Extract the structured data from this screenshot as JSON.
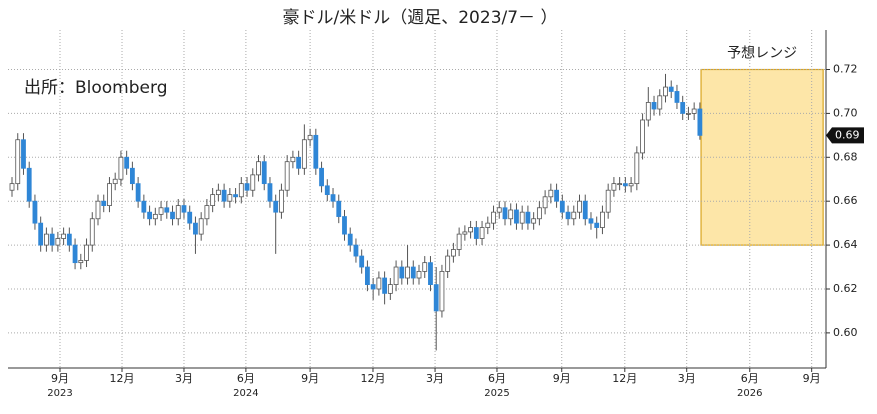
{
  "chart_data": {
    "type": "candlestick",
    "title": "豪ドル/米ドル（週足、2023/7－ ）",
    "source": "出所：Bloomberg",
    "x": [
      0,
      1,
      2,
      3,
      4,
      5,
      6,
      7,
      8,
      9,
      10,
      11,
      12,
      13,
      14,
      15,
      16,
      17,
      18,
      19,
      20,
      21,
      22,
      23,
      24,
      25,
      26,
      27,
      28,
      29,
      30,
      31,
      32,
      33,
      34,
      35,
      36,
      37,
      38,
      39,
      40,
      41,
      42,
      43,
      44,
      45,
      46,
      47,
      48,
      49,
      50,
      51,
      52,
      53,
      54,
      55,
      56,
      57,
      58,
      59,
      60,
      61,
      62,
      63,
      64,
      65,
      66,
      67,
      68,
      69,
      70,
      71,
      72,
      73,
      74,
      75,
      76,
      77,
      78,
      79,
      80,
      81,
      82,
      83,
      84,
      85,
      86,
      87,
      88,
      89,
      90,
      91,
      92,
      93,
      94,
      95,
      96,
      97,
      98,
      99,
      100,
      101,
      102,
      103,
      104,
      105,
      106,
      107,
      108,
      109,
      110,
      111,
      112,
      113,
      114,
      115,
      116,
      117,
      118,
      119,
      120
    ],
    "open": [
      0.665,
      0.668,
      0.688,
      0.675,
      0.66,
      0.65,
      0.64,
      0.645,
      0.64,
      0.643,
      0.645,
      0.64,
      0.632,
      0.633,
      0.64,
      0.652,
      0.66,
      0.658,
      0.668,
      0.67,
      0.68,
      0.675,
      0.668,
      0.66,
      0.655,
      0.652,
      0.654,
      0.657,
      0.655,
      0.652,
      0.658,
      0.655,
      0.65,
      0.645,
      0.652,
      0.658,
      0.663,
      0.665,
      0.66,
      0.663,
      0.662,
      0.668,
      0.665,
      0.672,
      0.678,
      0.668,
      0.66,
      0.655,
      0.665,
      0.678,
      0.68,
      0.675,
      0.688,
      0.69,
      0.675,
      0.667,
      0.663,
      0.66,
      0.653,
      0.645,
      0.64,
      0.635,
      0.63,
      0.622,
      0.62,
      0.625,
      0.618,
      0.622,
      0.63,
      0.625,
      0.63,
      0.625,
      0.628,
      0.632,
      0.622,
      0.61,
      0.628,
      0.635,
      0.638,
      0.645,
      0.646,
      0.648,
      0.643,
      0.648,
      0.65,
      0.655,
      0.657,
      0.652,
      0.656,
      0.65,
      0.655,
      0.65,
      0.652,
      0.657,
      0.662,
      0.665,
      0.66,
      0.655,
      0.652,
      0.655,
      0.66,
      0.652,
      0.65,
      0.648,
      0.655,
      0.665,
      0.668,
      0.668,
      0.667,
      0.668,
      0.682,
      0.697,
      0.705,
      0.702,
      0.708,
      0.712,
      0.71,
      0.705,
      0.7,
      0.7,
      0.702
    ],
    "high": [
      0.671,
      0.691,
      0.691,
      0.678,
      0.663,
      0.653,
      0.648,
      0.648,
      0.646,
      0.648,
      0.648,
      0.643,
      0.636,
      0.643,
      0.655,
      0.663,
      0.663,
      0.671,
      0.673,
      0.683,
      0.683,
      0.678,
      0.671,
      0.663,
      0.658,
      0.657,
      0.66,
      0.66,
      0.658,
      0.661,
      0.661,
      0.658,
      0.653,
      0.655,
      0.661,
      0.666,
      0.668,
      0.668,
      0.666,
      0.666,
      0.671,
      0.671,
      0.675,
      0.681,
      0.681,
      0.671,
      0.663,
      0.668,
      0.681,
      0.683,
      0.683,
      0.695,
      0.693,
      0.693,
      0.678,
      0.67,
      0.666,
      0.663,
      0.656,
      0.648,
      0.643,
      0.638,
      0.633,
      0.625,
      0.628,
      0.628,
      0.625,
      0.633,
      0.633,
      0.64,
      0.633,
      0.631,
      0.635,
      0.635,
      0.63,
      0.631,
      0.638,
      0.641,
      0.648,
      0.649,
      0.651,
      0.651,
      0.651,
      0.653,
      0.658,
      0.66,
      0.66,
      0.659,
      0.659,
      0.658,
      0.658,
      0.655,
      0.66,
      0.665,
      0.668,
      0.668,
      0.663,
      0.658,
      0.658,
      0.663,
      0.663,
      0.655,
      0.653,
      0.658,
      0.668,
      0.671,
      0.671,
      0.671,
      0.671,
      0.685,
      0.7,
      0.712,
      0.708,
      0.711,
      0.718,
      0.715,
      0.713,
      0.708,
      0.703,
      0.705,
      0.705
    ],
    "low": [
      0.662,
      0.665,
      0.672,
      0.657,
      0.647,
      0.637,
      0.637,
      0.637,
      0.637,
      0.64,
      0.637,
      0.629,
      0.629,
      0.63,
      0.637,
      0.649,
      0.655,
      0.655,
      0.665,
      0.667,
      0.672,
      0.665,
      0.657,
      0.652,
      0.649,
      0.649,
      0.651,
      0.652,
      0.649,
      0.649,
      0.652,
      0.647,
      0.636,
      0.642,
      0.649,
      0.655,
      0.66,
      0.657,
      0.657,
      0.659,
      0.659,
      0.662,
      0.662,
      0.669,
      0.665,
      0.657,
      0.636,
      0.652,
      0.662,
      0.675,
      0.672,
      0.672,
      0.685,
      0.672,
      0.664,
      0.66,
      0.657,
      0.65,
      0.642,
      0.637,
      0.632,
      0.627,
      0.619,
      0.615,
      0.617,
      0.613,
      0.615,
      0.619,
      0.622,
      0.622,
      0.622,
      0.622,
      0.625,
      0.619,
      0.592,
      0.607,
      0.625,
      0.632,
      0.635,
      0.642,
      0.643,
      0.64,
      0.64,
      0.645,
      0.647,
      0.652,
      0.649,
      0.649,
      0.647,
      0.647,
      0.647,
      0.647,
      0.649,
      0.654,
      0.659,
      0.657,
      0.652,
      0.649,
      0.649,
      0.652,
      0.649,
      0.647,
      0.643,
      0.645,
      0.652,
      0.662,
      0.665,
      0.664,
      0.664,
      0.665,
      0.679,
      0.694,
      0.699,
      0.699,
      0.705,
      0.707,
      0.702,
      0.697,
      0.697,
      0.697,
      0.688
    ],
    "close": [
      0.668,
      0.688,
      0.675,
      0.66,
      0.65,
      0.64,
      0.645,
      0.64,
      0.643,
      0.645,
      0.64,
      0.632,
      0.633,
      0.64,
      0.652,
      0.66,
      0.658,
      0.668,
      0.67,
      0.68,
      0.675,
      0.668,
      0.66,
      0.655,
      0.652,
      0.654,
      0.657,
      0.655,
      0.652,
      0.658,
      0.655,
      0.65,
      0.645,
      0.652,
      0.658,
      0.663,
      0.665,
      0.66,
      0.663,
      0.662,
      0.668,
      0.665,
      0.672,
      0.678,
      0.668,
      0.66,
      0.655,
      0.665,
      0.678,
      0.68,
      0.675,
      0.688,
      0.69,
      0.675,
      0.667,
      0.663,
      0.66,
      0.653,
      0.645,
      0.64,
      0.635,
      0.63,
      0.622,
      0.62,
      0.625,
      0.618,
      0.622,
      0.63,
      0.625,
      0.63,
      0.625,
      0.628,
      0.632,
      0.622,
      0.61,
      0.628,
      0.635,
      0.638,
      0.645,
      0.646,
      0.648,
      0.643,
      0.648,
      0.65,
      0.655,
      0.657,
      0.652,
      0.656,
      0.65,
      0.655,
      0.65,
      0.652,
      0.657,
      0.662,
      0.665,
      0.66,
      0.655,
      0.652,
      0.655,
      0.66,
      0.652,
      0.65,
      0.648,
      0.655,
      0.665,
      0.668,
      0.668,
      0.667,
      0.668,
      0.682,
      0.697,
      0.705,
      0.702,
      0.708,
      0.712,
      0.71,
      0.705,
      0.7,
      0.7,
      0.702,
      0.69
    ],
    "up_color": "#ffffff",
    "down_color": "#2f86d6",
    "xlim": [
      -0.7,
      142.0
    ],
    "ylim": [
      0.584,
      0.738
    ],
    "xticks": [
      {
        "value": 8.37,
        "label": "9月"
      },
      {
        "value": 19.19,
        "label": "12月"
      },
      {
        "value": 30.0,
        "label": "3月"
      },
      {
        "value": 40.8,
        "label": "6月"
      },
      {
        "value": 52.0,
        "label": "9月"
      },
      {
        "value": 62.97,
        "label": "12月"
      },
      {
        "value": 73.8,
        "label": "3月"
      },
      {
        "value": 84.6,
        "label": "6月"
      },
      {
        "value": 95.9,
        "label": "9月"
      },
      {
        "value": 106.9,
        "label": "12月"
      },
      {
        "value": 117.7,
        "label": "3月"
      },
      {
        "value": 128.7,
        "label": "6月"
      },
      {
        "value": 139.5,
        "label": "9月"
      }
    ],
    "year_labels": [
      {
        "value": 8.37,
        "label": "2023"
      },
      {
        "value": 40.8,
        "label": "2024"
      },
      {
        "value": 84.6,
        "label": "2025"
      },
      {
        "value": 128.7,
        "label": "2026"
      }
    ],
    "yticks": [
      {
        "value": 0.6,
        "label": "0.60"
      },
      0.62,
      0.64,
      0.66,
      0.68,
      {
        "value": 0.7,
        "label": "0.70"
      },
      0.72
    ],
    "grid": true,
    "last_price": 0.69,
    "forecast_range": {
      "label": "予想レンジ",
      "x": [
        120.2,
        141.5
      ],
      "y": [
        0.64,
        0.72
      ],
      "color": "#fde6a8"
    }
  }
}
